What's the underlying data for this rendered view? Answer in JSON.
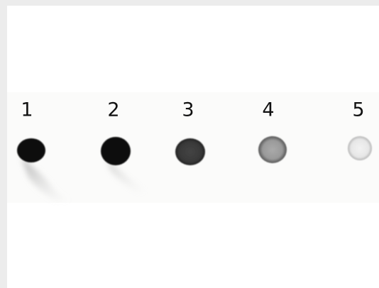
{
  "lanes": [
    {
      "label": "1"
    },
    {
      "label": "2"
    },
    {
      "label": "3"
    },
    {
      "label": "4"
    },
    {
      "label": "5"
    }
  ]
}
